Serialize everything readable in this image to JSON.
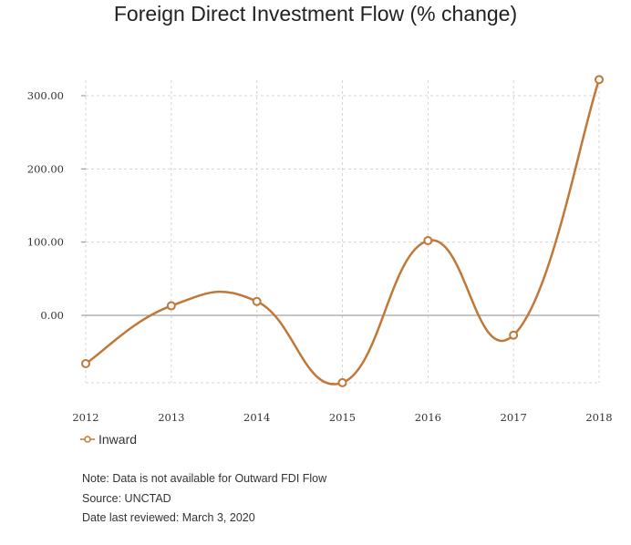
{
  "chart_data": {
    "type": "line",
    "title": "Foreign Direct Investment Flow (% change)",
    "xlabel": "",
    "ylabel": "",
    "categories": [
      "2012",
      "2013",
      "2014",
      "2015",
      "2016",
      "2017",
      "2018"
    ],
    "series": [
      {
        "name": "Inward",
        "color": "#c07838",
        "values": [
          -66,
          13,
          19,
          -92,
          102,
          -27,
          322
        ]
      }
    ],
    "y_ticks": [
      0,
      100,
      200,
      300
    ],
    "y_tick_labels": [
      "0.00",
      "100.00",
      "200.00",
      "300.00"
    ],
    "ylim": [
      -92,
      322
    ],
    "grid": true,
    "legend_position": "bottom-left",
    "curve": "smooth"
  },
  "notes": [
    "Note: Data is not available for Outward FDI Flow",
    "Source: UNCTAD",
    "Date last reviewed: March 3, 2020"
  ]
}
